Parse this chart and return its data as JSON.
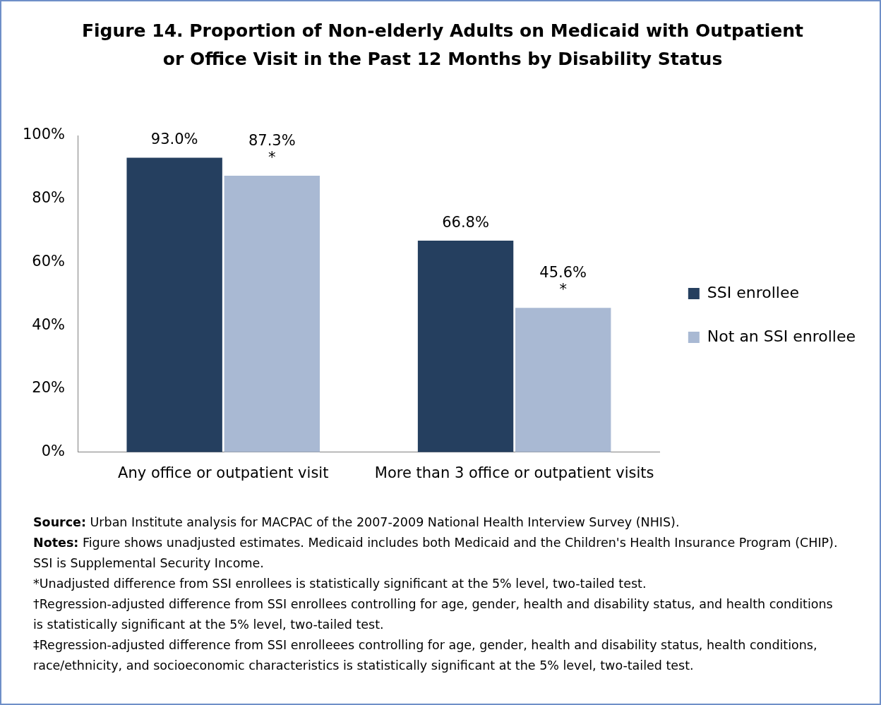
{
  "chart_data": {
    "type": "bar",
    "title": "Figure 14. Proportion of Non-elderly Adults on Medicaid with Outpatient or Office Visit in the Past 12 Months by Disability Status",
    "categories": [
      "Any office or outpatient visit",
      "More than 3 office or outpatient visits"
    ],
    "series": [
      {
        "name": "SSI enrollee",
        "color": "#253f5f",
        "values": [
          93.0,
          66.8
        ],
        "value_labels": [
          "93.0%",
          "66.8%"
        ]
      },
      {
        "name": "Not an SSI enrollee",
        "color": "#a9b9d3",
        "values": [
          87.3,
          45.6
        ],
        "value_labels": [
          "87.3%\n*",
          "45.6%\n*"
        ]
      }
    ],
    "ylim": [
      0,
      100
    ],
    "yticks": [
      {
        "value": 0,
        "label": "0%"
      },
      {
        "value": 20,
        "label": "20%"
      },
      {
        "value": 40,
        "label": "40%"
      },
      {
        "value": 60,
        "label": "60%"
      },
      {
        "value": 80,
        "label": "80%"
      },
      {
        "value": 100,
        "label": "100%"
      }
    ],
    "grid": false,
    "legend": "right",
    "annotations": [
      "Source: Urban Institute analysis for MACPAC of the 2007-2009 National Health Interview Survey (NHIS).",
      "Notes: Figure shows unadjusted estimates. Medicaid includes both Medicaid and the Children's Health Insurance Program (CHIP). SSI is Supplemental Security Income.",
      "*Unadjusted difference from SSI enrollees is statistically significant at the 5% level, two-tailed test.",
      "†Regression-adjusted difference from SSI enrollees controlling for age, gender, health and disability status, and health conditions is statistically significant at the 5% level, two-tailed test.",
      "‡Regression-adjusted difference from SSI enrolleees controlling for age, gender, health and disability status, health conditions, race/ethnicity, and socioeconomic characteristics is statistically significant at the 5% level, two-tailed test."
    ]
  }
}
